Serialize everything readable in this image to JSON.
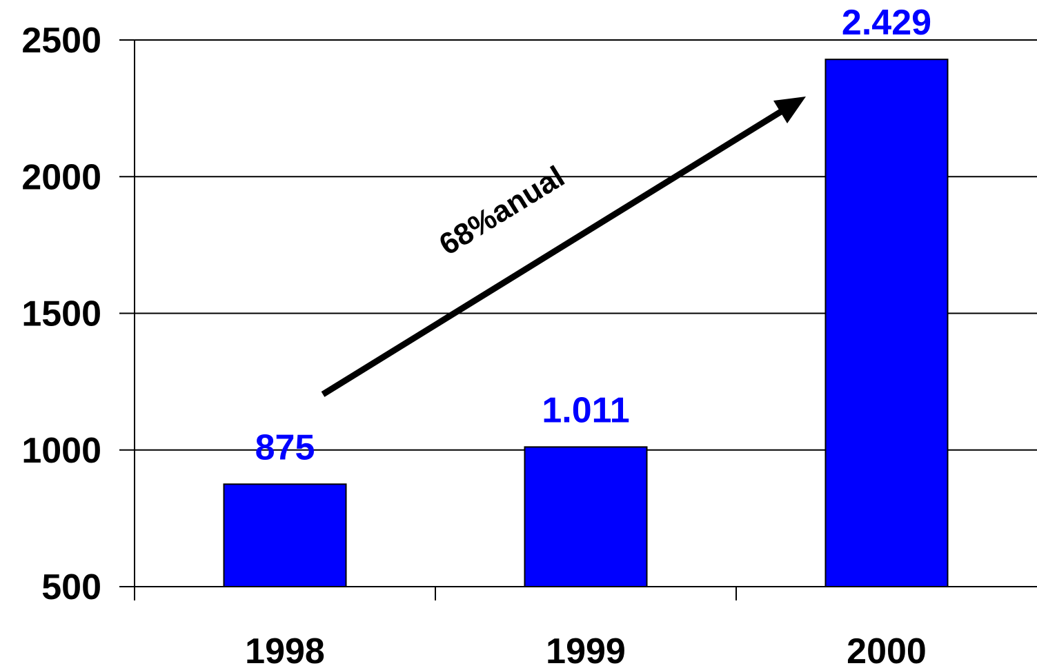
{
  "chart_data": {
    "type": "bar",
    "title": "",
    "xlabel": "",
    "ylabel": "",
    "categories": [
      "1998",
      "1999",
      "2000"
    ],
    "values": [
      875,
      1011,
      2429
    ],
    "data_labels": [
      "875",
      "1.011",
      "2.429"
    ],
    "ylim": [
      500,
      2500
    ],
    "y_ticks": [
      500,
      1000,
      1500,
      2000,
      2500
    ],
    "y_tick_labels": [
      "500",
      "1000",
      "1500",
      "2000",
      "2500"
    ],
    "grid": true,
    "legend": "none",
    "annotation": {
      "text": "68%anual",
      "type": "arrow"
    }
  },
  "colors": {
    "bar": "#0000ff",
    "bar_outline": "#000000",
    "data_label": "#0000ff",
    "grid": "#000000",
    "axis": "#000000"
  }
}
